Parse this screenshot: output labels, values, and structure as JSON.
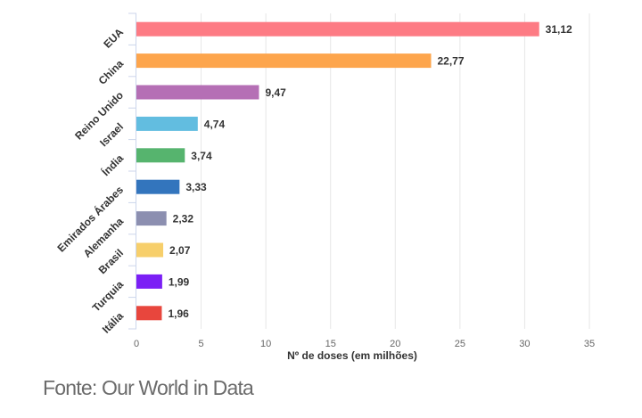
{
  "chart_data": {
    "type": "bar",
    "orientation": "horizontal",
    "categories": [
      "EUA",
      "China",
      "Reino Unido",
      "Israel",
      "Índia",
      "Emirados Árabes",
      "Alemanha",
      "Brasil",
      "Turquia",
      "Itália"
    ],
    "values": [
      31.12,
      22.77,
      9.47,
      4.74,
      3.74,
      3.33,
      2.32,
      2.07,
      1.99,
      1.96
    ],
    "value_labels": [
      "31,12",
      "22,77",
      "9,47",
      "4,74",
      "3,74",
      "3,33",
      "2,32",
      "2,07",
      "1,99",
      "1,96"
    ],
    "colors": [
      "#fd7b84",
      "#fda54c",
      "#b56fb5",
      "#62bde0",
      "#56b46e",
      "#3375bd",
      "#8c8fb0",
      "#f7cf6b",
      "#7b1ff5",
      "#e8463d"
    ],
    "xlabel": "Nº de doses (em milhões)",
    "ylabel": "",
    "xlim": [
      0,
      35
    ],
    "xticks": [
      0,
      5,
      10,
      15,
      20,
      25,
      30,
      35
    ],
    "grid": true
  },
  "footer": "Fonte: Our World in Data"
}
